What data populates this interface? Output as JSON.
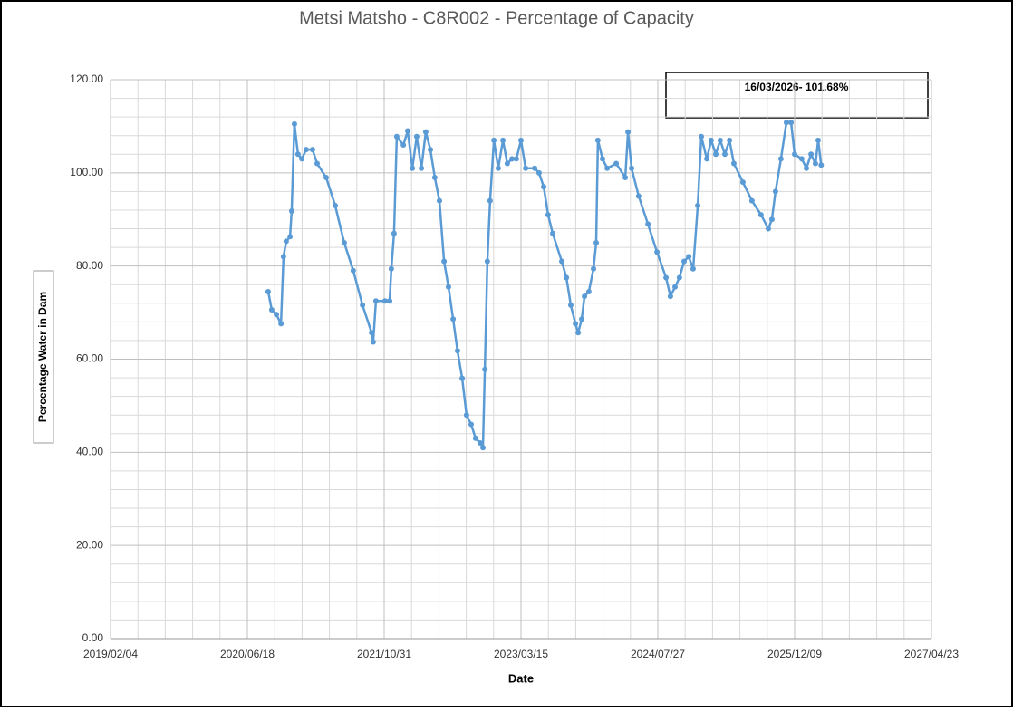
{
  "chart_data": {
    "type": "line",
    "title": "Metsi Matsho - C8R002 - Percentage of Capacity",
    "x_label": "Date",
    "y_label": "Percentage Water in Dam",
    "annotation": "16/03/2026- 101.68%",
    "xlim": [
      "2019/02/04",
      "2027/04/23"
    ],
    "xticks": [
      "2019/02/04",
      "2020/06/18",
      "2021/10/31",
      "2023/03/15",
      "2024/07/27",
      "2025/12/09",
      "2027/04/23"
    ],
    "ylim": [
      0,
      120
    ],
    "yticks": [
      {
        "value": 0,
        "label": "0.00"
      },
      {
        "value": 20,
        "label": "20.00"
      },
      {
        "value": 40,
        "label": "40.00"
      },
      {
        "value": 60,
        "label": "60.00"
      },
      {
        "value": 80,
        "label": "80.00"
      },
      {
        "value": 100,
        "label": "100.00"
      },
      {
        "value": 120,
        "label": "120.00"
      }
    ],
    "grid": true,
    "x": [
      "2020/09/02",
      "2020/09/15",
      "2020/10/02",
      "2020/10/19",
      "2020/10/28",
      "2020/11/07",
      "2020/11/21",
      "2020/11/27",
      "2020/12/07",
      "2020/12/20",
      "2021/01/03",
      "2021/01/19",
      "2021/02/11",
      "2021/02/28",
      "2021/04/02",
      "2021/05/05",
      "2021/06/07",
      "2021/07/10",
      "2021/08/13",
      "2021/09/15",
      "2021/09/21",
      "2021/10/01",
      "2021/11/03",
      "2021/11/20",
      "2021/11/26",
      "2021/12/06",
      "2021/12/16",
      "2022/01/09",
      "2022/01/25",
      "2022/02/11",
      "2022/02/27",
      "2022/03/16",
      "2022/04/01",
      "2022/04/18",
      "2022/05/04",
      "2022/05/21",
      "2022/06/07",
      "2022/06/23",
      "2022/07/10",
      "2022/07/26",
      "2022/08/12",
      "2022/08/28",
      "2022/09/14",
      "2022/09/30",
      "2022/10/17",
      "2022/10/27",
      "2022/11/03",
      "2022/11/12",
      "2022/11/22",
      "2022/12/06",
      "2022/12/22",
      "2023/01/08",
      "2023/01/24",
      "2023/02/10",
      "2023/02/26",
      "2023/03/15",
      "2023/04/01",
      "2023/05/04",
      "2023/05/20",
      "2023/06/06",
      "2023/06/22",
      "2023/07/09",
      "2023/08/11",
      "2023/08/28",
      "2023/09/13",
      "2023/09/30",
      "2023/10/10",
      "2023/10/23",
      "2023/11/02",
      "2023/11/18",
      "2023/12/05",
      "2023/12/15",
      "2023/12/21",
      "2024/01/07",
      "2024/01/24",
      "2024/02/26",
      "2024/03/30",
      "2024/04/09",
      "2024/04/22",
      "2024/05/18",
      "2024/06/21",
      "2024/07/24",
      "2024/08/26",
      "2024/09/11",
      "2024/09/28",
      "2024/10/14",
      "2024/10/31",
      "2024/11/17",
      "2024/12/03",
      "2024/12/20",
      "2025/01/02",
      "2025/01/22",
      "2025/02/07",
      "2025/02/24",
      "2025/03/12",
      "2025/03/29",
      "2025/04/15",
      "2025/05/01",
      "2025/06/03",
      "2025/07/06",
      "2025/08/08",
      "2025/09/04",
      "2025/09/17",
      "2025/09/30",
      "2025/10/20",
      "2025/11/09",
      "2025/11/26",
      "2025/12/09",
      "2026/01/04",
      "2026/01/21",
      "2026/02/07",
      "2026/02/23",
      "2026/03/05",
      "2026/03/16"
    ],
    "series": [
      {
        "name": "C8R002",
        "color": "#5b9bd5",
        "values": [
          74.5,
          70.6,
          69.6,
          67.6,
          82,
          85.3,
          86.3,
          91.8,
          110.5,
          104,
          103,
          105,
          105,
          102,
          99,
          93,
          85,
          79,
          71.6,
          65.7,
          63.7,
          72.5,
          72.5,
          72.5,
          79.4,
          87,
          107.8,
          106,
          109,
          101,
          107.8,
          101,
          108.8,
          105,
          99,
          94,
          81,
          75.5,
          68.6,
          61.8,
          55.9,
          48,
          46,
          43,
          42,
          41,
          57.8,
          81,
          94,
          107,
          101,
          107,
          102,
          103,
          103,
          107,
          101,
          101,
          100,
          97,
          91,
          87,
          81,
          77.5,
          71.6,
          67.6,
          65.7,
          68.6,
          73.5,
          74.5,
          79.4,
          85,
          107,
          103,
          101,
          102,
          99,
          108.8,
          101,
          95,
          89,
          83,
          77.5,
          73.5,
          75.5,
          77.5,
          81,
          82,
          79.4,
          93,
          107.8,
          103,
          107,
          104,
          107,
          104,
          107,
          102,
          98,
          94,
          91,
          88,
          90,
          96,
          103,
          110.8,
          110.8,
          104,
          103,
          101,
          104,
          102,
          107,
          101.68
        ]
      }
    ]
  }
}
